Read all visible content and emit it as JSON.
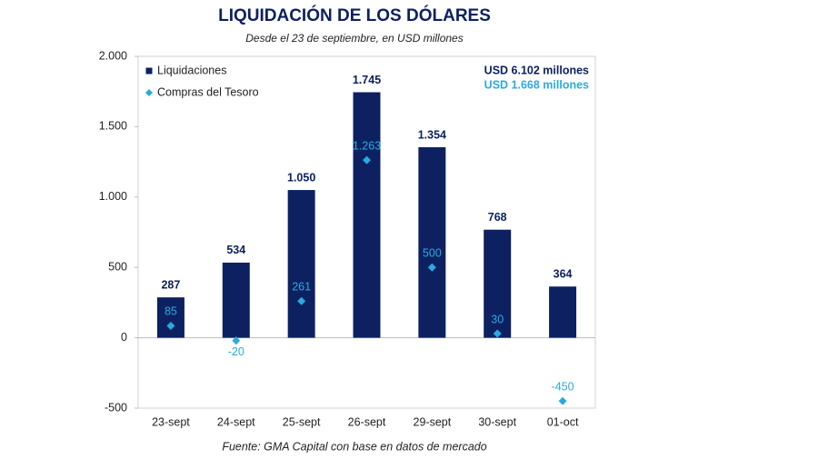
{
  "chart_data": {
    "type": "bar-marker",
    "title": "LIQUIDACIÓN DE LOS DÓLARES",
    "subtitle": "Desde el 23 de septiembre, en USD millones",
    "source": "Fuente: GMA Capital con base en datos de mercado",
    "categories": [
      "23-sept",
      "24-sept",
      "25-sept",
      "26-sept",
      "29-sept",
      "30-sept",
      "01-oct"
    ],
    "series": [
      {
        "name": "Liquidaciones",
        "color": "#0d2160",
        "type": "bar",
        "values": [
          287,
          534,
          1050,
          1745,
          1354,
          768,
          364
        ],
        "value_labels": [
          "287",
          "534",
          "1.050",
          "1.745",
          "1.354",
          "768",
          "364"
        ]
      },
      {
        "name": "Compras del Tesoro",
        "color": "#29abe2",
        "type": "marker",
        "values": [
          85,
          -20,
          261,
          1263,
          500,
          30,
          -450
        ],
        "value_labels": [
          "85",
          "-20",
          "261",
          "1.263",
          "500",
          "30",
          "-450"
        ]
      }
    ],
    "annotations": [
      "USD 6.102 millones",
      "USD 1.668 millones"
    ],
    "ylim": [
      -500,
      2000
    ],
    "yticks": [
      -500,
      0,
      500,
      {
        "value": 1000,
        "label": "1.000"
      },
      {
        "value": 1500,
        "label": "1.500"
      },
      {
        "value": 2000,
        "label": "2.000"
      }
    ],
    "legend": "top-left"
  }
}
